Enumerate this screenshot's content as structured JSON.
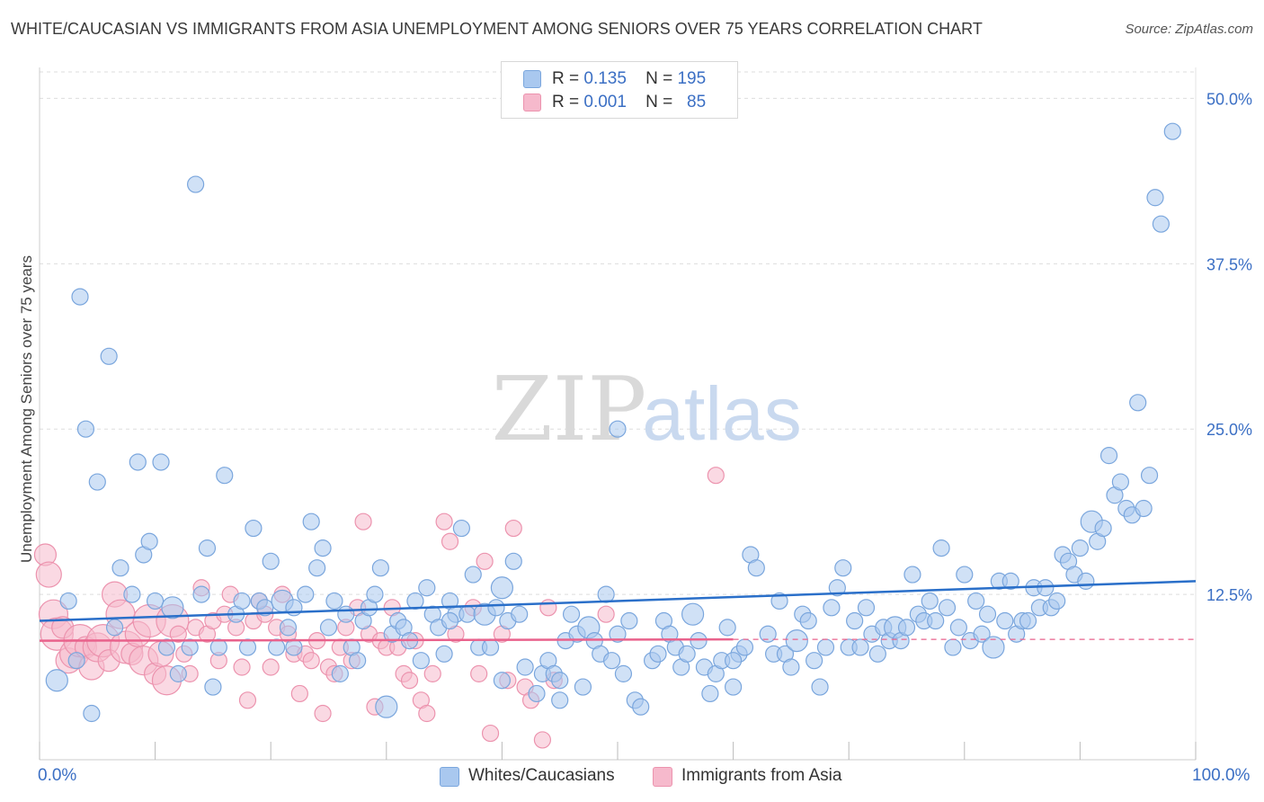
{
  "header": {
    "title": "WHITE/CAUCASIAN VS IMMIGRANTS FROM ASIA UNEMPLOYMENT AMONG SENIORS OVER 75 YEARS CORRELATION CHART",
    "source": "Source: ZipAtlas.com"
  },
  "legend_top": {
    "row1": {
      "r_label": "R =",
      "r_value": "0.135",
      "n_label": "N =",
      "n_value": "195"
    },
    "row2": {
      "r_label": "R =",
      "r_value": "0.001",
      "n_label": "N =",
      "n_value": "85"
    }
  },
  "colors": {
    "blue_fill": "#a9c8ef",
    "blue_stroke": "#7aa6dd",
    "blue_line": "#2a6fc9",
    "pink_fill": "#f6b9cc",
    "pink_stroke": "#ec93ae",
    "pink_line": "#e9628c",
    "tick_text": "#3b6fc4",
    "grid": "#dddddd"
  },
  "watermark": {
    "zip": "ZIP",
    "atlas": "atlas"
  },
  "chart_data": {
    "type": "scatter",
    "title": "WHITE/CAUCASIAN VS IMMIGRANTS FROM ASIA UNEMPLOYMENT AMONG SENIORS OVER 75 YEARS CORRELATION CHART",
    "ylabel": "Unemployment Among Seniors over 75 years",
    "xlabel": "",
    "x_tick_labels": [
      "0.0%",
      "100.0%"
    ],
    "y_tick_labels": [
      "12.5%",
      "25.0%",
      "37.5%",
      "50.0%"
    ],
    "y_ticks": [
      12.5,
      25.0,
      37.5,
      50.0
    ],
    "xlim": [
      0,
      100
    ],
    "ylim": [
      0,
      52
    ],
    "grid": true,
    "legend_position": "bottom-center",
    "series": [
      {
        "name": "Whites/Caucasians",
        "color": "#a9c8ef",
        "r": 0.135,
        "n": 195,
        "trend": {
          "x": [
            0,
            100
          ],
          "y": [
            10.5,
            13.5
          ]
        },
        "points": [
          [
            1.5,
            6.0
          ],
          [
            2.5,
            12.0
          ],
          [
            3.2,
            7.5
          ],
          [
            3.5,
            35.0
          ],
          [
            4,
            25.0
          ],
          [
            4.5,
            3.5
          ],
          [
            5,
            21.0
          ],
          [
            6,
            30.5
          ],
          [
            6.5,
            10.0
          ],
          [
            7,
            14.5
          ],
          [
            8,
            12.5
          ],
          [
            8.5,
            22.5
          ],
          [
            9,
            15.5
          ],
          [
            9.5,
            16.5
          ],
          [
            10,
            12.0
          ],
          [
            10.5,
            22.5
          ],
          [
            11,
            8.5
          ],
          [
            11.5,
            11.5
          ],
          [
            12,
            6.5
          ],
          [
            13,
            8.5
          ],
          [
            13.5,
            43.5
          ],
          [
            14,
            12.5
          ],
          [
            14.5,
            16.0
          ],
          [
            15,
            5.5
          ],
          [
            15.5,
            8.5
          ],
          [
            16,
            21.5
          ],
          [
            17,
            11.0
          ],
          [
            17.5,
            12.0
          ],
          [
            18,
            8.5
          ],
          [
            18.5,
            17.5
          ],
          [
            19,
            12.0
          ],
          [
            19.5,
            11.5
          ],
          [
            20,
            15.0
          ],
          [
            20.5,
            8.5
          ],
          [
            21,
            12.0
          ],
          [
            21.5,
            10.0
          ],
          [
            22,
            11.5
          ],
          [
            23,
            12.5
          ],
          [
            23.5,
            18.0
          ],
          [
            24,
            14.5
          ],
          [
            24.5,
            16.0
          ],
          [
            25,
            10.0
          ],
          [
            25.5,
            12.0
          ],
          [
            26,
            6.5
          ],
          [
            26.5,
            11.0
          ],
          [
            27,
            8.5
          ],
          [
            27.5,
            7.5
          ],
          [
            28,
            10.5
          ],
          [
            28.5,
            11.5
          ],
          [
            29,
            12.5
          ],
          [
            29.5,
            14.5
          ],
          [
            30,
            4.0
          ],
          [
            30.5,
            9.5
          ],
          [
            31,
            10.5
          ],
          [
            31.5,
            10.0
          ],
          [
            32,
            9.0
          ],
          [
            32.5,
            12.0
          ],
          [
            33,
            7.5
          ],
          [
            33.5,
            13.0
          ],
          [
            34,
            11.0
          ],
          [
            34.5,
            10.0
          ],
          [
            35,
            8.0
          ],
          [
            35.5,
            12.0
          ],
          [
            36,
            11.0
          ],
          [
            36.5,
            17.5
          ],
          [
            37,
            11.0
          ],
          [
            37.5,
            14.0
          ],
          [
            38,
            8.5
          ],
          [
            38.5,
            11.0
          ],
          [
            39,
            8.5
          ],
          [
            39.5,
            11.5
          ],
          [
            40,
            6.0
          ],
          [
            40.5,
            10.5
          ],
          [
            41,
            15.0
          ],
          [
            41.5,
            11.0
          ],
          [
            42,
            7.0
          ],
          [
            43,
            5.0
          ],
          [
            43.5,
            6.5
          ],
          [
            44,
            7.5
          ],
          [
            44.5,
            6.5
          ],
          [
            45,
            6.0
          ],
          [
            45.5,
            9.0
          ],
          [
            46,
            11.0
          ],
          [
            46.5,
            9.5
          ],
          [
            47,
            5.5
          ],
          [
            47.5,
            10.0
          ],
          [
            48,
            9.0
          ],
          [
            48.5,
            8.0
          ],
          [
            49,
            12.5
          ],
          [
            49.5,
            7.5
          ],
          [
            50,
            9.5
          ],
          [
            50.5,
            6.5
          ],
          [
            51,
            10.5
          ],
          [
            51.5,
            4.5
          ],
          [
            52,
            4.0
          ],
          [
            53,
            7.5
          ],
          [
            53.5,
            8.0
          ],
          [
            54,
            10.5
          ],
          [
            54.5,
            9.5
          ],
          [
            55,
            8.5
          ],
          [
            55.5,
            7.0
          ],
          [
            56,
            8.0
          ],
          [
            56.5,
            11.0
          ],
          [
            57,
            9.0
          ],
          [
            57.5,
            7.0
          ],
          [
            58,
            5.0
          ],
          [
            58.5,
            6.5
          ],
          [
            59,
            7.5
          ],
          [
            59.5,
            10.0
          ],
          [
            60,
            5.5
          ],
          [
            60.5,
            8.0
          ],
          [
            61,
            8.5
          ],
          [
            61.5,
            15.5
          ],
          [
            62,
            14.5
          ],
          [
            63,
            9.5
          ],
          [
            63.5,
            8.0
          ],
          [
            64,
            12.0
          ],
          [
            64.5,
            8.0
          ],
          [
            65,
            7.0
          ],
          [
            65.5,
            9.0
          ],
          [
            66,
            11.0
          ],
          [
            66.5,
            10.5
          ],
          [
            67,
            7.5
          ],
          [
            67.5,
            5.5
          ],
          [
            68,
            8.5
          ],
          [
            68.5,
            11.5
          ],
          [
            69,
            13.0
          ],
          [
            69.5,
            14.5
          ],
          [
            70,
            8.5
          ],
          [
            70.5,
            10.5
          ],
          [
            71,
            8.5
          ],
          [
            71.5,
            11.5
          ],
          [
            72,
            9.5
          ],
          [
            72.5,
            8.0
          ],
          [
            73,
            10.0
          ],
          [
            73.5,
            9.0
          ],
          [
            74,
            10.0
          ],
          [
            74.5,
            9.0
          ],
          [
            75,
            10.0
          ],
          [
            75.5,
            14.0
          ],
          [
            76,
            11.0
          ],
          [
            76.5,
            10.5
          ],
          [
            77,
            12.0
          ],
          [
            77.5,
            10.5
          ],
          [
            78,
            16.0
          ],
          [
            78.5,
            11.5
          ],
          [
            79,
            8.5
          ],
          [
            79.5,
            10.0
          ],
          [
            80,
            14.0
          ],
          [
            80.5,
            9.0
          ],
          [
            81,
            12.0
          ],
          [
            81.5,
            9.5
          ],
          [
            82,
            11.0
          ],
          [
            82.5,
            8.5
          ],
          [
            83,
            13.5
          ],
          [
            83.5,
            10.5
          ],
          [
            84,
            13.5
          ],
          [
            84.5,
            9.5
          ],
          [
            85,
            10.5
          ],
          [
            85.5,
            10.5
          ],
          [
            86,
            13.0
          ],
          [
            86.5,
            11.5
          ],
          [
            87,
            13.0
          ],
          [
            87.5,
            11.5
          ],
          [
            88,
            12.0
          ],
          [
            88.5,
            15.5
          ],
          [
            89,
            15.0
          ],
          [
            89.5,
            14.0
          ],
          [
            90,
            16.0
          ],
          [
            90.5,
            13.5
          ],
          [
            91,
            18.0
          ],
          [
            91.5,
            16.5
          ],
          [
            92,
            17.5
          ],
          [
            92.5,
            23.0
          ],
          [
            93,
            20.0
          ],
          [
            93.5,
            21.0
          ],
          [
            94,
            19.0
          ],
          [
            94.5,
            18.5
          ],
          [
            95,
            27.0
          ],
          [
            95.5,
            19.0
          ],
          [
            96,
            21.5
          ],
          [
            96.5,
            42.5
          ],
          [
            97,
            40.5
          ],
          [
            98,
            47.5
          ],
          [
            50,
            25.0
          ],
          [
            45,
            4.5
          ],
          [
            35.5,
            10.5
          ],
          [
            40,
            13.0
          ],
          [
            22,
            8.5
          ],
          [
            60,
            7.5
          ]
        ]
      },
      {
        "name": "Immigrants from Asia",
        "color": "#f6b9cc",
        "r": 0.001,
        "n": 85,
        "trend": {
          "x": [
            0,
            60
          ],
          "y": [
            9.0,
            9.1
          ]
        },
        "dashed_extension": {
          "x": [
            60,
            100
          ],
          "y": [
            9.1,
            9.1
          ]
        },
        "points": [
          [
            0.5,
            15.5
          ],
          [
            0.8,
            14.0
          ],
          [
            1.2,
            11.0
          ],
          [
            1.5,
            9.5
          ],
          [
            2,
            10.0
          ],
          [
            2.5,
            7.5
          ],
          [
            3,
            8.0
          ],
          [
            3.5,
            9.0
          ],
          [
            4,
            8.5
          ],
          [
            4.5,
            7.0
          ],
          [
            5,
            8.5
          ],
          [
            5.5,
            9.0
          ],
          [
            6,
            7.5
          ],
          [
            6.5,
            12.5
          ],
          [
            7,
            11.0
          ],
          [
            7.5,
            8.5
          ],
          [
            8,
            8.0
          ],
          [
            8.5,
            9.5
          ],
          [
            9,
            7.5
          ],
          [
            9.5,
            10.5
          ],
          [
            10,
            6.5
          ],
          [
            10.5,
            8.0
          ],
          [
            11,
            6.0
          ],
          [
            11.5,
            10.5
          ],
          [
            12,
            9.5
          ],
          [
            12.5,
            8.0
          ],
          [
            13,
            6.5
          ],
          [
            13.5,
            10.0
          ],
          [
            14,
            13.0
          ],
          [
            14.5,
            9.5
          ],
          [
            15,
            10.5
          ],
          [
            15.5,
            7.5
          ],
          [
            16,
            11.0
          ],
          [
            16.5,
            12.5
          ],
          [
            17,
            10.0
          ],
          [
            17.5,
            7.0
          ],
          [
            18,
            4.5
          ],
          [
            18.5,
            10.5
          ],
          [
            19,
            12.0
          ],
          [
            19.5,
            11.0
          ],
          [
            20,
            7.0
          ],
          [
            20.5,
            10.0
          ],
          [
            21,
            12.5
          ],
          [
            21.5,
            9.5
          ],
          [
            22,
            8.0
          ],
          [
            22.5,
            5.0
          ],
          [
            23,
            8.0
          ],
          [
            23.5,
            7.5
          ],
          [
            24,
            9.0
          ],
          [
            24.5,
            3.5
          ],
          [
            25,
            7.0
          ],
          [
            25.5,
            6.5
          ],
          [
            26,
            8.5
          ],
          [
            26.5,
            10.0
          ],
          [
            27,
            7.5
          ],
          [
            27.5,
            11.5
          ],
          [
            28,
            18.0
          ],
          [
            28.5,
            9.5
          ],
          [
            29,
            4.0
          ],
          [
            29.5,
            9.0
          ],
          [
            30,
            8.5
          ],
          [
            30.5,
            11.5
          ],
          [
            31,
            8.5
          ],
          [
            31.5,
            6.5
          ],
          [
            32,
            6.0
          ],
          [
            32.5,
            9.0
          ],
          [
            33,
            4.5
          ],
          [
            33.5,
            3.5
          ],
          [
            34,
            6.5
          ],
          [
            35,
            18.0
          ],
          [
            35.5,
            16.5
          ],
          [
            36,
            9.5
          ],
          [
            37.5,
            11.5
          ],
          [
            38,
            6.5
          ],
          [
            38.5,
            15.0
          ],
          [
            39,
            2.0
          ],
          [
            40,
            9.5
          ],
          [
            40.5,
            6.0
          ],
          [
            41,
            17.5
          ],
          [
            42,
            5.5
          ],
          [
            42.5,
            4.5
          ],
          [
            43.5,
            1.5
          ],
          [
            44,
            11.5
          ],
          [
            44.5,
            6.0
          ],
          [
            49,
            11.0
          ],
          [
            58.5,
            21.5
          ]
        ]
      }
    ]
  },
  "legend_bottom": {
    "item1": "Whites/Caucasians",
    "item2": "Immigrants from Asia"
  }
}
